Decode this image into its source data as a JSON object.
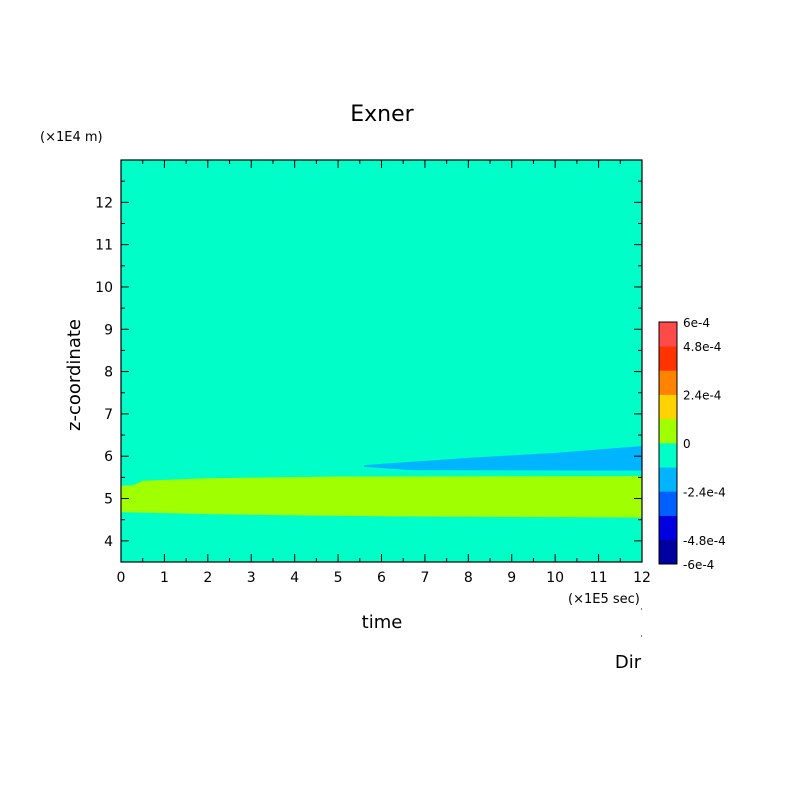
{
  "chart_data": {
    "type": "heatmap",
    "title": "Exner",
    "xlabel": "time",
    "ylabel": "z-coordinate",
    "x_unit_label": "(×1E5 sec)",
    "y_unit_label": "(×1E4 m)",
    "xlim": [
      0,
      12
    ],
    "ylim": [
      3.5,
      13
    ],
    "x_ticks": [
      "0",
      "1",
      "2",
      "3",
      "4",
      "5",
      "6",
      "7",
      "8",
      "9",
      "10",
      "11",
      "12"
    ],
    "y_ticks": [
      "4",
      "5",
      "6",
      "7",
      "8",
      "9",
      "10",
      "11",
      "12"
    ],
    "background_level": "0 to -1.2e-4",
    "regions": [
      {
        "name": "positive band",
        "level": "0 to 1.2e-4",
        "upper": [
          [
            0,
            5.3
          ],
          [
            0.3,
            5.32
          ],
          [
            0.5,
            5.42
          ],
          [
            2,
            5.48
          ],
          [
            5,
            5.52
          ],
          [
            12,
            5.53
          ]
        ],
        "lower": [
          [
            0,
            4.68
          ],
          [
            2,
            4.63
          ],
          [
            4.3,
            4.6
          ],
          [
            6,
            4.58
          ],
          [
            12,
            4.55
          ]
        ]
      },
      {
        "name": "negative tongue",
        "level": "-1.2e-4 to -2.4e-4",
        "upper": [
          [
            5.6,
            5.79
          ],
          [
            8,
            5.96
          ],
          [
            10,
            6.08
          ],
          [
            12,
            6.24
          ]
        ],
        "lower": [
          [
            5.6,
            5.75
          ],
          [
            6.7,
            5.67
          ],
          [
            12,
            5.66
          ]
        ]
      }
    ],
    "colorbar": {
      "colors": [
        "#0000a0",
        "#0000e0",
        "#0060ff",
        "#00b4ff",
        "#00ffc8",
        "#a0ff00",
        "#ffd200",
        "#ff8200",
        "#ff3200",
        "#ff4a4a"
      ],
      "tick_labels": [
        "6e-4",
        "4.8e-4",
        "2.4e-4",
        "0",
        "-2.4e-4",
        "-4.8e-4",
        "-6e-4"
      ]
    },
    "annotation": "Dir"
  }
}
